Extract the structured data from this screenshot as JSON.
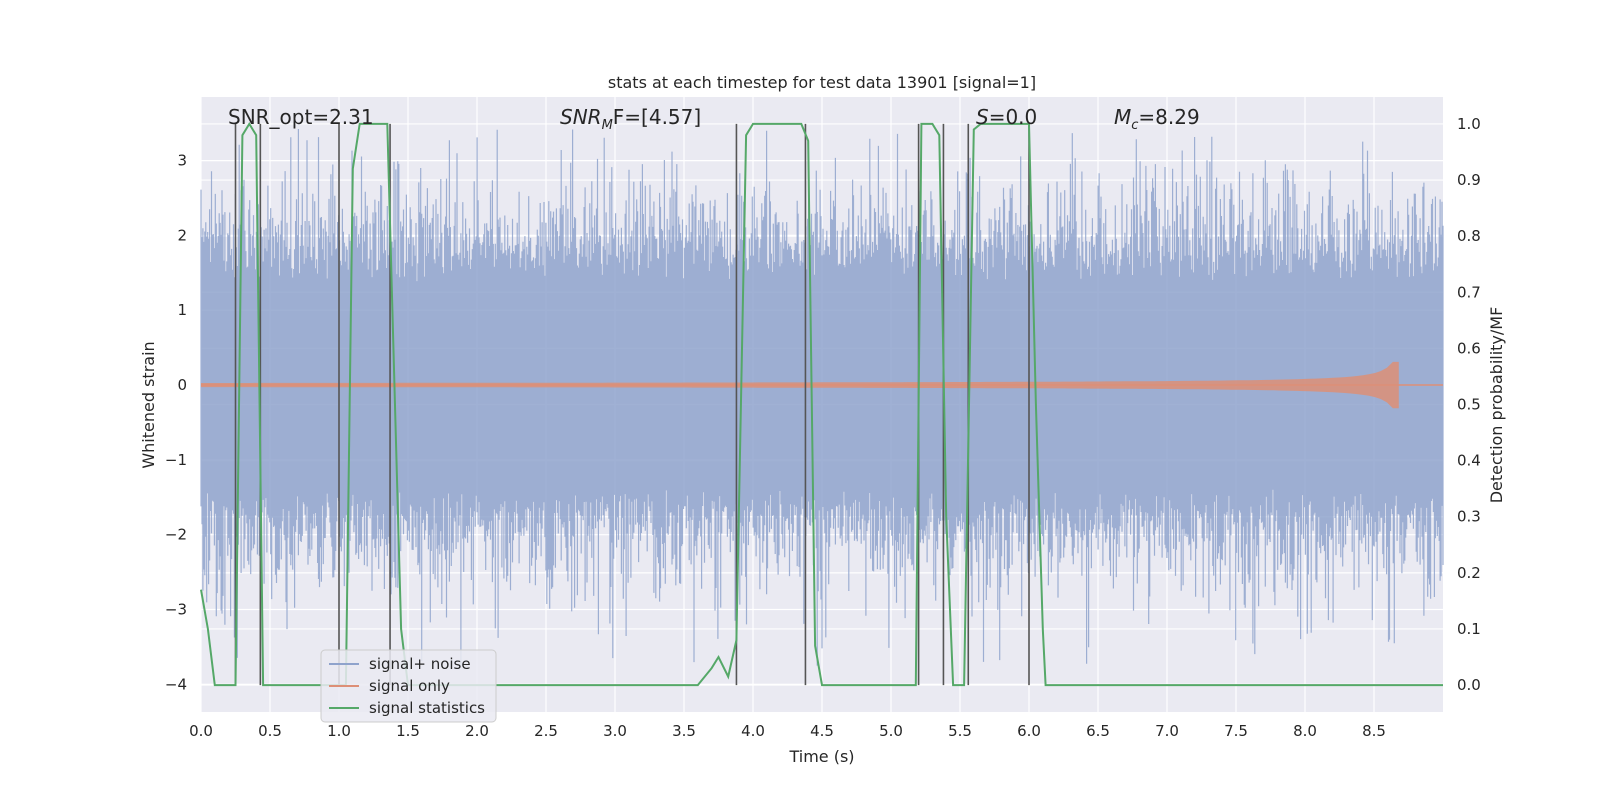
{
  "chart_data": {
    "type": "line",
    "title": "stats at each timestep for test data 13901 [signal=1]",
    "xlabel": "Time (s)",
    "ylabel_left": "Whitened strain",
    "ylabel_right": "Detection probability/MF",
    "xlim": [
      0.0,
      9.0
    ],
    "ylim_left": [
      -4.37,
      3.85
    ],
    "ylim_right": [
      -0.048,
      1.048
    ],
    "x_ticks": [
      "0.0",
      "0.5",
      "1.0",
      "1.5",
      "2.0",
      "2.5",
      "3.0",
      "3.5",
      "4.0",
      "4.5",
      "5.0",
      "5.5",
      "6.0",
      "6.5",
      "7.0",
      "7.5",
      "8.0",
      "8.5"
    ],
    "y_ticks_left": [
      "−4",
      "−3",
      "−2",
      "−1",
      "0",
      "1",
      "2",
      "3"
    ],
    "y_ticks_right": [
      "0.0",
      "0.1",
      "0.2",
      "0.3",
      "0.4",
      "0.5",
      "0.6",
      "0.7",
      "0.8",
      "0.9",
      "1.0"
    ],
    "grid": true,
    "legend_position": "lower-left",
    "annotations": {
      "snr_opt": "SNR_opt=2.31",
      "snr_mf_var": "SNR",
      "snr_mf_sub": "M",
      "snr_mf_rest": "F=[4.57]",
      "s_var": "S",
      "s_rest": "=0.0",
      "mc_var": "M",
      "mc_sub": "c",
      "mc_rest": "=8.29"
    },
    "series": [
      {
        "name": "signal+ noise",
        "axis": "left",
        "color": "#8fa3cc",
        "noise_band_rms": 1.25,
        "noise_peak_range": [
          -3.5,
          3.5
        ]
      },
      {
        "name": "signal only",
        "axis": "left",
        "color": "#dd8f77",
        "chirp_peak_time": 8.68,
        "chirp_peak_amplitude": 0.3
      },
      {
        "name": "signal statistics",
        "axis": "right",
        "color": "#55a868",
        "x": [
          0.0,
          0.05,
          0.1,
          0.2,
          0.25,
          0.3,
          0.35,
          0.4,
          0.45,
          0.5,
          0.55,
          0.6,
          0.8,
          1.0,
          1.05,
          1.1,
          1.15,
          1.2,
          1.3,
          1.35,
          1.4,
          1.45,
          1.5,
          1.55,
          1.6,
          3.6,
          3.7,
          3.75,
          3.82,
          3.88,
          3.95,
          4.0,
          4.35,
          4.4,
          4.45,
          4.5,
          5.0,
          5.18,
          5.22,
          5.27,
          5.3,
          5.35,
          5.4,
          5.45,
          5.5,
          5.53,
          5.6,
          5.65,
          5.7,
          6.0,
          6.05,
          6.1,
          6.12,
          9.0
        ],
        "y": [
          0.17,
          0.1,
          0.0,
          0.0,
          0.0,
          0.98,
          1.0,
          0.98,
          0.0,
          0.0,
          0.0,
          0.0,
          0.0,
          0.0,
          0.0,
          0.92,
          1.0,
          1.0,
          1.0,
          1.0,
          0.55,
          0.1,
          0.0,
          0.0,
          0.0,
          0.0,
          0.03,
          0.05,
          0.015,
          0.08,
          0.98,
          1.0,
          1.0,
          0.97,
          0.07,
          0.0,
          0.0,
          0.0,
          1.0,
          1.0,
          1.0,
          0.98,
          0.3,
          0.0,
          0.0,
          0.0,
          0.99,
          1.0,
          1.0,
          1.0,
          0.5,
          0.1,
          0.0,
          0.0
        ]
      },
      {
        "name": "",
        "axis": "right",
        "type": "vertical-lines",
        "color": "#555555",
        "x": [
          0.25,
          0.43,
          1.0,
          1.37,
          3.88,
          4.38,
          5.2,
          5.38,
          5.56,
          6.0
        ]
      }
    ]
  }
}
